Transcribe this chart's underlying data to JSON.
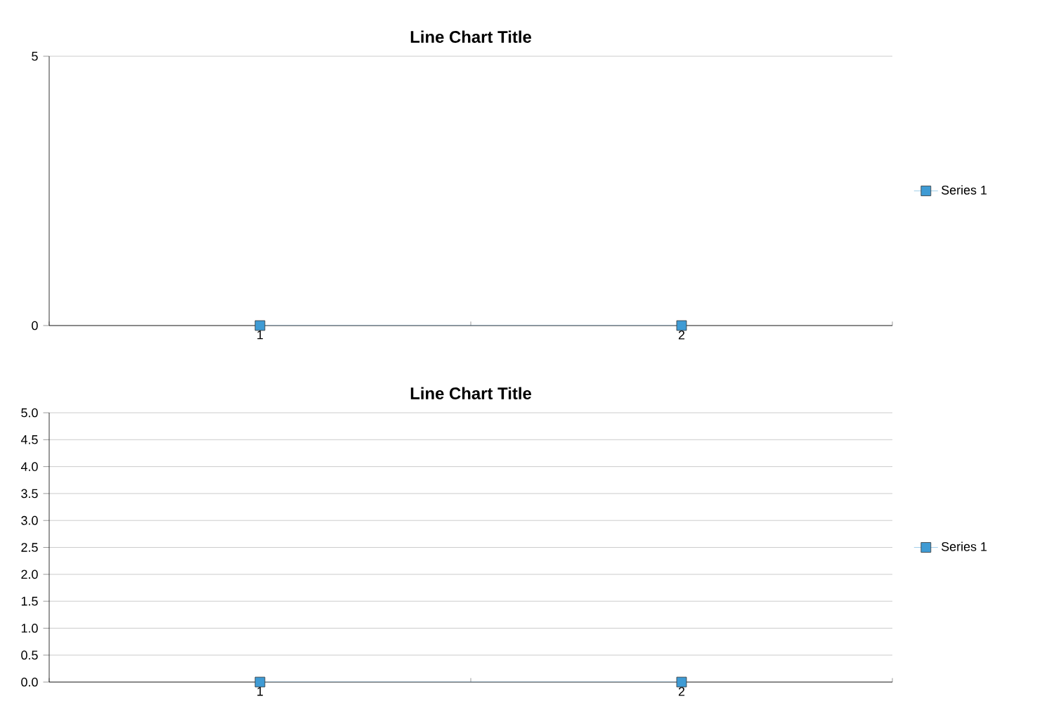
{
  "chart_data": [
    {
      "type": "line",
      "title": "Line Chart Title",
      "categories": [
        "1",
        "2"
      ],
      "series": [
        {
          "name": "Series 1",
          "color": "#3f9bd4",
          "values": [
            0,
            0
          ]
        }
      ],
      "ylim": [
        0,
        5
      ],
      "yticks": [
        0,
        5
      ],
      "grid": "y",
      "legend": "right",
      "marker": "square",
      "line_style": "solid"
    },
    {
      "type": "line",
      "title": "Line Chart Title",
      "categories": [
        "1",
        "2"
      ],
      "series": [
        {
          "name": "Series 1",
          "color": "#3f9bd4",
          "values": [
            0,
            0
          ]
        }
      ],
      "ylim": [
        0,
        5
      ],
      "yticks": [
        {
          "value": 0,
          "label": "0.0"
        },
        {
          "value": 0.5,
          "label": "0.5"
        },
        {
          "value": 1,
          "label": "1.0"
        },
        {
          "value": 1.5,
          "label": "1.5"
        },
        {
          "value": 2,
          "label": "2.0"
        },
        {
          "value": 2.5,
          "label": "2.5"
        },
        {
          "value": 3,
          "label": "3.0"
        },
        {
          "value": 3.5,
          "label": "3.5"
        },
        {
          "value": 4,
          "label": "4.0"
        },
        {
          "value": 4.5,
          "label": "4.5"
        },
        {
          "value": 5,
          "label": "5.0"
        }
      ],
      "grid": "y",
      "legend": "right",
      "marker": "square",
      "line_style": "solid"
    }
  ]
}
